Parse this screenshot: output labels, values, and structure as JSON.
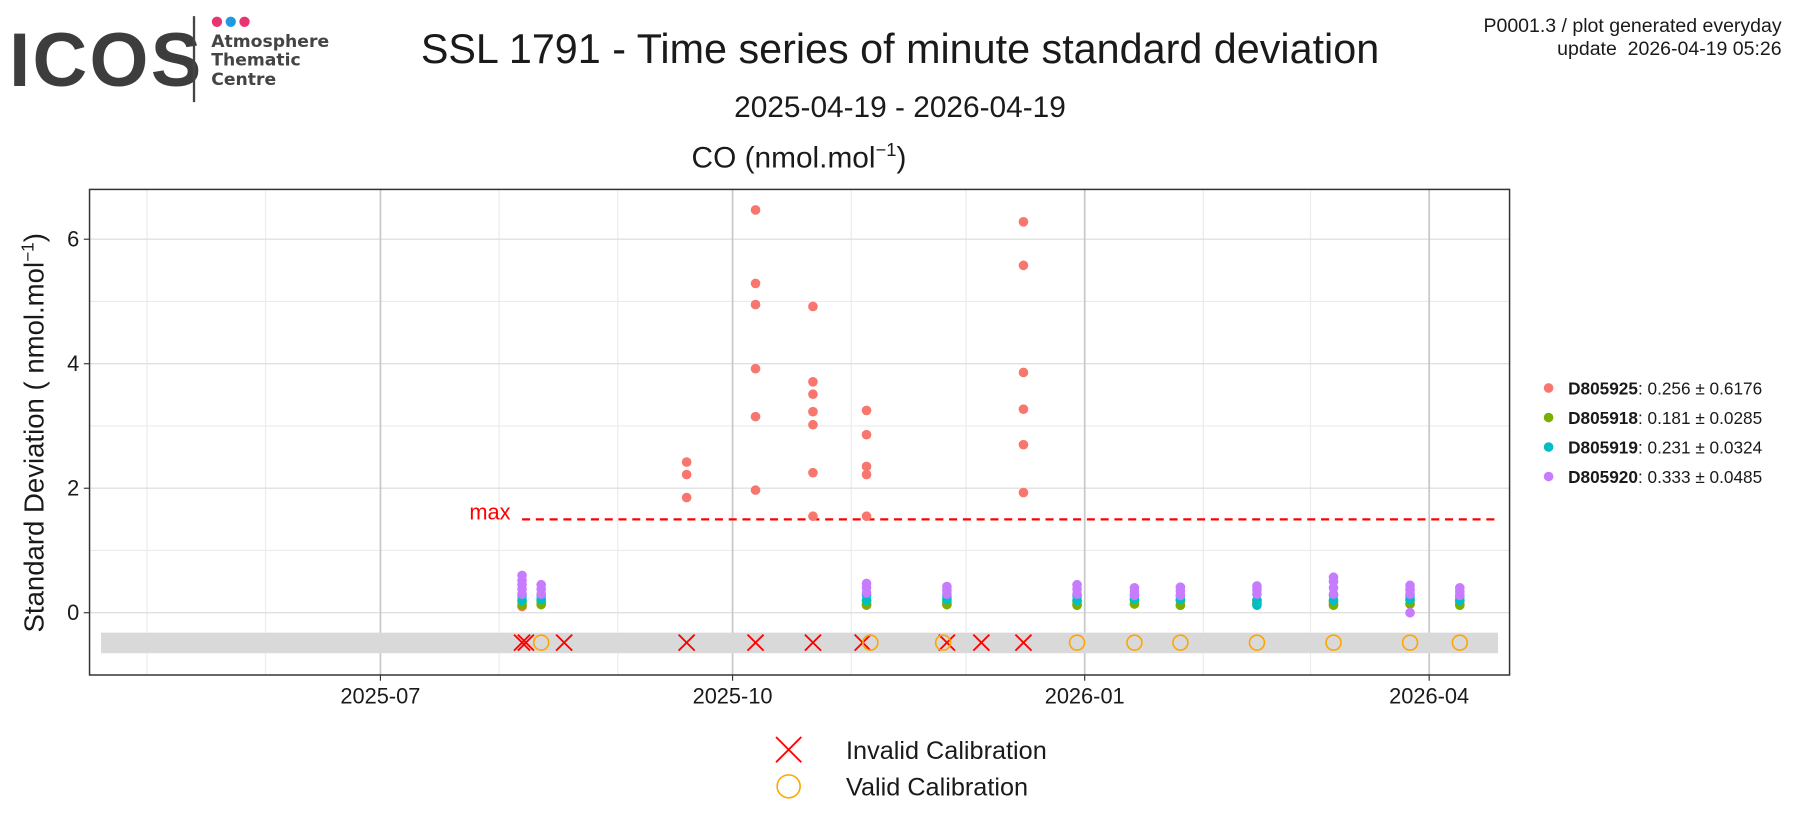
{
  "header": {
    "logo": "ICOS",
    "logo_lines": [
      "Atmosphere",
      "Thematic",
      "Centre"
    ],
    "info": [
      "P0001.3 / plot generated everyday",
      "update  2026-04-19 05:26"
    ]
  },
  "chart_data": {
    "type": "scatter",
    "title": "SSL 1791 - Time series of minute standard deviation",
    "subtitle": "2025-04-19 - 2026-04-19",
    "panel_title": {
      "text": "CO (nmol.mol",
      "superscript": "−1",
      "suffix": ")"
    },
    "y_label": {
      "text": "Standard Deviation ( nmol.mol",
      "superscript": "−1",
      "suffix": ")"
    },
    "xlim": [
      "2025-04-16",
      "2026-04-22"
    ],
    "xticks": [
      {
        "value": "2025-07-01",
        "label": "2025-07"
      },
      {
        "value": "2025-10-01",
        "label": "2025-10"
      },
      {
        "value": "2026-01-01",
        "label": "2026-01"
      },
      {
        "value": "2026-04-01",
        "label": "2026-04"
      }
    ],
    "ylim": [
      -1,
      6.8
    ],
    "yticks": [
      0,
      2,
      4,
      6
    ],
    "grid": true,
    "max_line": {
      "label": "max",
      "value": 1.5,
      "x": [
        "2025-08-07",
        "2026-04-19"
      ],
      "color": "#ff0000"
    },
    "band": {
      "x": [
        "2025-04-19",
        "2026-04-19"
      ],
      "y": [
        -0.65,
        -0.32
      ],
      "color": "#d9d9d9"
    },
    "series": [
      {
        "name": "D805925",
        "stats": ": 0.256 ± 0.6176",
        "color": "#F8766D",
        "x": [
          "2025-09-19",
          "2025-09-19",
          "2025-09-19",
          "2025-10-07",
          "2025-10-07",
          "2025-10-07",
          "2025-10-07",
          "2025-10-07",
          "2025-10-07",
          "2025-10-22",
          "2025-10-22",
          "2025-10-22",
          "2025-10-22",
          "2025-10-22",
          "2025-10-22",
          "2025-10-22",
          "2025-11-05",
          "2025-11-05",
          "2025-11-05",
          "2025-11-05",
          "2025-11-05",
          "2025-12-16",
          "2025-12-16",
          "2025-12-16",
          "2025-12-16",
          "2025-12-16",
          "2025-12-16",
          "2025-08-07",
          "2025-08-12",
          "2025-11-05",
          "2025-11-26",
          "2025-12-30",
          "2026-01-14",
          "2026-01-26",
          "2026-02-15",
          "2026-03-07",
          "2026-03-27",
          "2026-04-09"
        ],
        "values": [
          2.42,
          2.22,
          1.85,
          6.47,
          5.29,
          4.95,
          3.92,
          3.15,
          1.97,
          4.92,
          3.71,
          3.51,
          3.23,
          3.02,
          2.25,
          1.55,
          3.25,
          2.86,
          2.35,
          2.22,
          1.55,
          6.28,
          5.58,
          3.86,
          3.27,
          2.7,
          1.93,
          0.1,
          0.15,
          0.12,
          0.14,
          0.13,
          0.15,
          0.12,
          0.16,
          0.15,
          0.14,
          0.15
        ]
      },
      {
        "name": "D805918",
        "stats": ": 0.181 ± 0.0285",
        "color": "#7CAE00",
        "x": [
          "2025-08-07",
          "2025-08-12",
          "2025-11-05",
          "2025-11-26",
          "2025-12-30",
          "2026-01-14",
          "2026-01-26",
          "2026-02-15",
          "2026-03-07",
          "2026-03-27",
          "2026-04-09",
          "2025-08-07",
          "2025-08-12",
          "2025-11-05",
          "2025-11-26",
          "2025-12-30",
          "2026-01-14",
          "2026-01-26",
          "2026-02-15",
          "2026-03-07",
          "2026-03-27",
          "2026-04-09"
        ],
        "values": [
          0.12,
          0.13,
          0.13,
          0.13,
          0.12,
          0.14,
          0.12,
          0.15,
          0.12,
          0.14,
          0.12,
          0.18,
          0.19,
          0.19,
          0.18,
          0.18,
          0.2,
          0.19,
          0.2,
          0.18,
          0.2,
          0.19
        ]
      },
      {
        "name": "D805919",
        "stats": ": 0.231 ± 0.0324",
        "color": "#00BFC4",
        "x": [
          "2025-08-07",
          "2025-08-12",
          "2025-11-05",
          "2025-11-26",
          "2025-12-30",
          "2026-01-14",
          "2026-01-26",
          "2026-02-15",
          "2026-03-07",
          "2026-03-27",
          "2026-04-09",
          "2025-08-07",
          "2025-08-12",
          "2025-11-05",
          "2025-11-26",
          "2025-12-30",
          "2026-01-14",
          "2026-01-26",
          "2026-02-15",
          "2026-03-07",
          "2026-03-27",
          "2026-04-09"
        ],
        "values": [
          0.2,
          0.21,
          0.2,
          0.21,
          0.2,
          0.22,
          0.21,
          0.12,
          0.2,
          0.21,
          0.2,
          0.27,
          0.27,
          0.28,
          0.26,
          0.27,
          0.28,
          0.27,
          0.2,
          0.28,
          0.27,
          0.26
        ]
      },
      {
        "name": "D805920",
        "stats": ": 0.333 ± 0.0485",
        "color": "#C77CFF",
        "x": [
          "2025-08-07",
          "2025-08-07",
          "2025-08-07",
          "2025-08-07",
          "2025-08-07",
          "2025-08-12",
          "2025-08-12",
          "2025-08-12",
          "2025-11-05",
          "2025-11-05",
          "2025-11-05",
          "2025-11-26",
          "2025-11-26",
          "2025-11-26",
          "2025-12-30",
          "2025-12-30",
          "2025-12-30",
          "2026-01-14",
          "2026-01-14",
          "2026-01-14",
          "2026-01-26",
          "2026-01-26",
          "2026-01-26",
          "2026-02-15",
          "2026-02-15",
          "2026-02-15",
          "2026-03-07",
          "2026-03-07",
          "2026-03-07",
          "2026-03-07",
          "2026-03-27",
          "2026-03-27",
          "2026-03-27",
          "2026-03-27",
          "2026-04-09",
          "2026-04-09",
          "2026-04-09"
        ],
        "values": [
          0.3,
          0.38,
          0.45,
          0.52,
          0.6,
          0.3,
          0.38,
          0.45,
          0.32,
          0.4,
          0.47,
          0.3,
          0.36,
          0.42,
          0.3,
          0.38,
          0.45,
          0.28,
          0.34,
          0.4,
          0.28,
          0.35,
          0.41,
          0.3,
          0.37,
          0.43,
          0.3,
          0.4,
          0.5,
          0.57,
          0.0,
          0.3,
          0.37,
          0.44,
          0.28,
          0.34,
          0.4
        ]
      }
    ],
    "markers": [
      {
        "name": "Invalid Calibration",
        "shape": "x",
        "color": "#ff0000",
        "x": [
          "2025-08-07",
          "2025-08-08",
          "2025-08-18",
          "2025-09-19",
          "2025-10-07",
          "2025-10-22",
          "2025-11-04",
          "2025-11-26",
          "2025-12-05",
          "2025-12-16"
        ],
        "values": [
          -0.48,
          -0.48,
          -0.48,
          -0.48,
          -0.48,
          -0.48,
          -0.48,
          -0.48,
          -0.48,
          -0.48
        ]
      },
      {
        "name": "Valid Calibration",
        "shape": "circle",
        "color": "#ffa500",
        "x": [
          "2025-08-12",
          "2025-11-06",
          "2025-11-25",
          "2025-12-30",
          "2026-01-14",
          "2026-01-26",
          "2026-02-15",
          "2026-03-07",
          "2026-03-27",
          "2026-04-09"
        ],
        "values": [
          -0.48,
          -0.48,
          -0.48,
          -0.48,
          -0.48,
          -0.48,
          -0.48,
          -0.48,
          -0.48,
          -0.48
        ]
      }
    ]
  }
}
